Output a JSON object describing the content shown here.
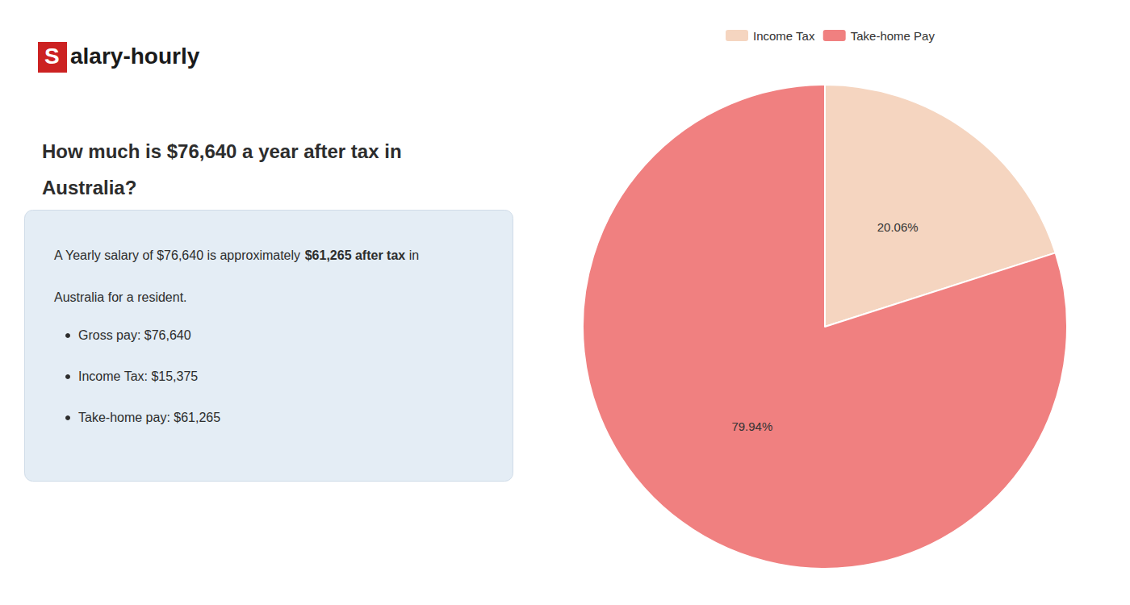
{
  "chart_data": {
    "type": "pie",
    "title": "How much is $76,640 a year after tax in\nAustralia?",
    "logo": {
      "mark": "S",
      "rest": "alary-hourly",
      "color": "#cc2222"
    },
    "text_lines": [
      [
        {
          "text": "A Yearly salary of $76,640 is approximately "
        },
        {
          "text": "$61,265 after tax",
          "color": "#cc0000"
        },
        {
          "text": " in"
        }
      ],
      [
        {
          "text": "Australia for a resident."
        }
      ]
    ],
    "bullets": [
      "Gross pay: $76,640",
      "Income Tax: $15,375",
      "Take-home pay: $61,265"
    ],
    "categories": [
      "Income Tax",
      "Take-home Pay"
    ],
    "values": [
      20.06,
      79.94
    ],
    "value_labels": [
      "20.06%",
      "79.94%"
    ],
    "data_labels": true,
    "colors": [
      "#f5d5c0",
      "#f08080"
    ],
    "legend": "top"
  }
}
